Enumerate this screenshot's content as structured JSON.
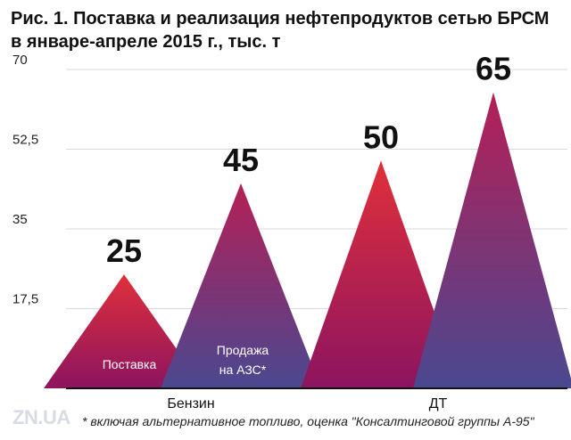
{
  "chart_data": {
    "type": "bar",
    "title_line1": "Рис. 1. Поставка и реализация нефтепродуктов сетью БРСМ",
    "title_line2": "в январе-апреле 2015 г., тыс. т",
    "categories": [
      "Бензин",
      "ДТ"
    ],
    "series": [
      {
        "name": "Поставка",
        "values": [
          25,
          50
        ]
      },
      {
        "name": "Продажа на АЗС*",
        "values": [
          45,
          65
        ]
      }
    ],
    "series_labels_shown": [
      "Поставка",
      "Продажа\nна АЗС*"
    ],
    "yticks": [
      17.5,
      35,
      52.5,
      70
    ],
    "ytick_labels": [
      "17,5",
      "35",
      "52,5",
      "70"
    ],
    "ylim": [
      0,
      70
    ],
    "colors": {
      "top": "#e0303a",
      "mid": "#9c1a5a",
      "base1": "#8c1460",
      "base2": "#4a4890"
    }
  },
  "footer": {
    "watermark": "ZN.UA",
    "footnote": "* включая альтернативное топливо, оценка \"Консалтинговой группы А-95\""
  }
}
